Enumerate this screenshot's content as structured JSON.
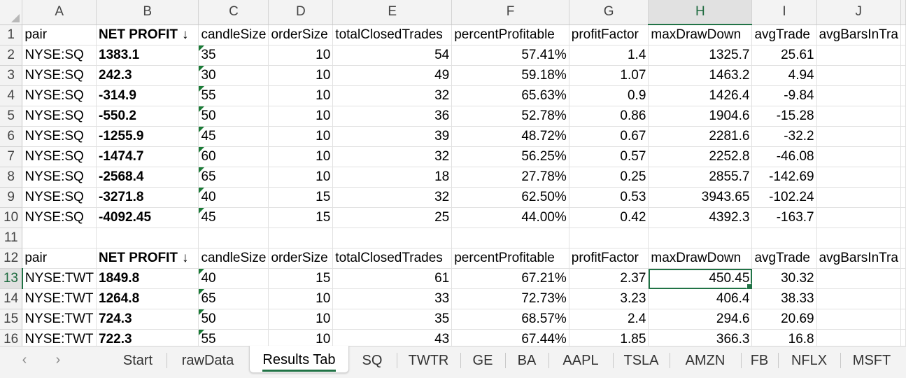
{
  "columns": [
    "A",
    "B",
    "C",
    "D",
    "E",
    "F",
    "G",
    "H",
    "I",
    "J"
  ],
  "selected_column": "H",
  "selected_row": "13",
  "rows": [
    {
      "n": "1",
      "cells": [
        "pair",
        "NET PROFIT",
        "candleSize",
        "orderSize",
        "totalClosedTrades",
        "percentProfitable",
        "profitFactor",
        "maxDrawDown",
        "avgTrade",
        "avgBarsInTra"
      ],
      "header": true
    },
    {
      "n": "2",
      "cells": [
        "NYSE:SQ",
        "1383.1",
        "35",
        "10",
        "54",
        "57.41%",
        "1.4",
        "1325.7",
        "25.61",
        ""
      ]
    },
    {
      "n": "3",
      "cells": [
        "NYSE:SQ",
        "242.3",
        "30",
        "10",
        "49",
        "59.18%",
        "1.07",
        "1463.2",
        "4.94",
        ""
      ]
    },
    {
      "n": "4",
      "cells": [
        "NYSE:SQ",
        "-314.9",
        "55",
        "10",
        "32",
        "65.63%",
        "0.9",
        "1426.4",
        "-9.84",
        ""
      ]
    },
    {
      "n": "5",
      "cells": [
        "NYSE:SQ",
        "-550.2",
        "50",
        "10",
        "36",
        "52.78%",
        "0.86",
        "1904.6",
        "-15.28",
        ""
      ]
    },
    {
      "n": "6",
      "cells": [
        "NYSE:SQ",
        "-1255.9",
        "45",
        "10",
        "39",
        "48.72%",
        "0.67",
        "2281.6",
        "-32.2",
        ""
      ]
    },
    {
      "n": "7",
      "cells": [
        "NYSE:SQ",
        "-1474.7",
        "60",
        "10",
        "32",
        "56.25%",
        "0.57",
        "2252.8",
        "-46.08",
        ""
      ]
    },
    {
      "n": "8",
      "cells": [
        "NYSE:SQ",
        "-2568.4",
        "65",
        "10",
        "18",
        "27.78%",
        "0.25",
        "2855.7",
        "-142.69",
        ""
      ]
    },
    {
      "n": "9",
      "cells": [
        "NYSE:SQ",
        "-3271.8",
        "40",
        "15",
        "32",
        "62.50%",
        "0.53",
        "3943.65",
        "-102.24",
        ""
      ]
    },
    {
      "n": "10",
      "cells": [
        "NYSE:SQ",
        "-4092.45",
        "45",
        "15",
        "25",
        "44.00%",
        "0.42",
        "4392.3",
        "-163.7",
        ""
      ]
    },
    {
      "n": "11",
      "cells": [
        "",
        "",
        "",
        "",
        "",
        "",
        "",
        "",
        "",
        ""
      ],
      "blank": true
    },
    {
      "n": "12",
      "cells": [
        "pair",
        "NET PROFIT",
        "candleSize",
        "orderSize",
        "totalClosedTrades",
        "percentProfitable",
        "profitFactor",
        "maxDrawDown",
        "avgTrade",
        "avgBarsInTra"
      ],
      "header": true
    },
    {
      "n": "13",
      "cells": [
        "NYSE:TWT",
        "1849.8",
        "40",
        "15",
        "61",
        "67.21%",
        "2.37",
        "450.45",
        "30.32",
        ""
      ]
    },
    {
      "n": "14",
      "cells": [
        "NYSE:TWT",
        "1264.8",
        "65",
        "10",
        "33",
        "72.73%",
        "3.23",
        "406.4",
        "38.33",
        ""
      ]
    },
    {
      "n": "15",
      "cells": [
        "NYSE:TWT",
        "724.3",
        "50",
        "10",
        "35",
        "68.57%",
        "2.4",
        "294.6",
        "20.69",
        ""
      ]
    },
    {
      "n": "16",
      "cells": [
        "NYSE:TWT",
        "722.3",
        "55",
        "10",
        "43",
        "67.44%",
        "1.85",
        "366.3",
        "16.8",
        ""
      ]
    }
  ],
  "sort_icon": "arrow-down-icon",
  "sort_glyph": "↓",
  "tabs": [
    "Start",
    "rawData",
    "Results Tab",
    "SQ",
    "TWTR",
    "GE",
    "BA",
    "AAPL",
    "TSLA",
    "AMZN",
    "FB",
    "NFLX",
    "MSFT"
  ],
  "active_tab": "Results Tab",
  "nav": {
    "prev": "‹",
    "next": "›"
  },
  "colors": {
    "accent": "#217346",
    "flag": "#1a7a36"
  }
}
